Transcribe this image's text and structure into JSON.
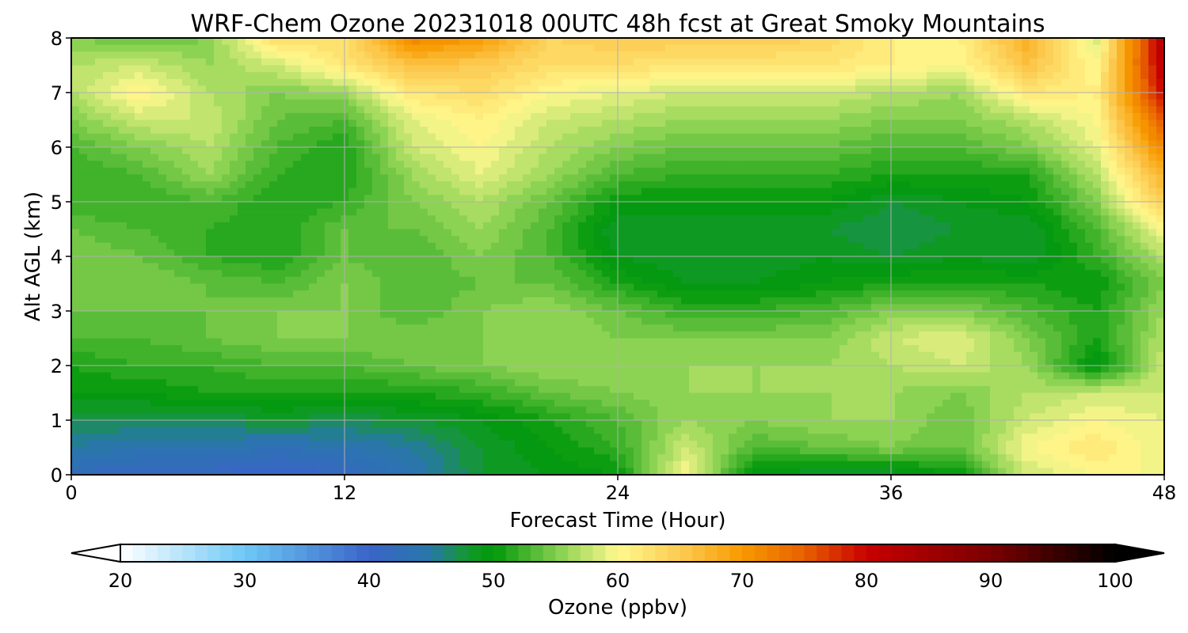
{
  "chart_data": {
    "type": "heatmap",
    "title": "WRF-Chem Ozone  20231018 00UTC 48h fcst at Great Smoky Mountains",
    "xlabel": "Forecast Time (Hour)",
    "ylabel": "Alt AGL (km)",
    "xlim": [
      0,
      48
    ],
    "ylim": [
      0,
      8
    ],
    "xticks": [
      0,
      12,
      24,
      36,
      48
    ],
    "yticks": [
      0,
      1,
      2,
      3,
      4,
      5,
      6,
      7,
      8
    ],
    "grid": true,
    "x_hours": [
      0,
      3,
      6,
      9,
      12,
      15,
      18,
      21,
      24,
      27,
      30,
      33,
      36,
      39,
      42,
      45,
      48
    ],
    "z_km": [
      0,
      0.5,
      1,
      1.5,
      2,
      2.5,
      3,
      3.5,
      4,
      4.5,
      5,
      5.5,
      6,
      6.5,
      7,
      7.5,
      8
    ],
    "values_ppbv": [
      [
        42,
        41,
        41,
        40,
        41,
        44,
        48,
        49,
        50,
        60,
        49,
        48,
        48,
        50,
        58,
        60,
        60
      ],
      [
        45,
        44,
        44,
        43,
        44,
        45,
        48,
        50,
        52,
        58,
        53,
        54,
        55,
        54,
        60,
        62,
        59
      ],
      [
        47,
        47,
        47,
        48,
        47,
        48,
        49,
        51,
        53,
        56,
        55,
        56,
        56,
        54,
        58,
        60,
        59
      ],
      [
        50,
        50,
        51,
        51,
        51,
        51,
        52,
        54,
        55,
        56,
        56,
        56,
        56,
        55,
        57,
        58,
        58
      ],
      [
        51,
        52,
        52,
        53,
        53,
        54,
        55,
        56,
        56,
        56,
        56,
        56,
        57,
        58,
        56,
        49,
        58
      ],
      [
        53,
        53,
        54,
        55,
        55,
        55,
        55,
        56,
        55,
        55,
        55,
        55,
        58,
        59,
        55,
        51,
        57
      ],
      [
        54,
        54,
        54,
        55,
        55,
        53,
        55,
        56,
        54,
        52,
        52,
        53,
        55,
        55,
        53,
        51,
        56
      ],
      [
        55,
        55,
        54,
        53,
        55,
        53,
        54,
        54,
        51,
        49,
        49,
        50,
        51,
        51,
        51,
        50,
        55
      ],
      [
        55,
        54,
        52,
        51,
        54,
        53,
        55,
        53,
        49,
        48,
        48,
        49,
        48,
        49,
        48,
        52,
        57
      ],
      [
        54,
        53,
        52,
        51,
        54,
        54,
        56,
        53,
        48,
        48,
        48,
        48,
        47,
        48,
        48,
        53,
        60
      ],
      [
        52,
        52,
        53,
        51,
        52,
        55,
        57,
        54,
        50,
        50,
        50,
        50,
        48,
        49,
        50,
        55,
        65
      ],
      [
        52,
        53,
        56,
        52,
        51,
        56,
        59,
        56,
        53,
        52,
        52,
        52,
        51,
        51,
        51,
        57,
        68
      ],
      [
        53,
        55,
        57,
        53,
        51,
        58,
        60,
        57,
        55,
        54,
        54,
        54,
        53,
        53,
        55,
        59,
        72
      ],
      [
        55,
        58,
        58,
        54,
        53,
        59,
        61,
        58,
        57,
        56,
        56,
        56,
        55,
        55,
        57,
        60,
        76
      ],
      [
        57,
        61,
        57,
        55,
        56,
        62,
        63,
        60,
        59,
        58,
        58,
        58,
        57,
        56,
        62,
        61,
        80
      ],
      [
        57,
        58,
        56,
        58,
        62,
        66,
        65,
        63,
        63,
        62,
        62,
        62,
        61,
        60,
        66,
        60,
        82
      ],
      [
        55,
        54,
        55,
        63,
        63,
        72,
        70,
        64,
        65,
        65,
        65,
        64,
        61,
        61,
        68,
        58,
        83
      ]
    ],
    "colorbar": {
      "label": "Ozone  (ppbv)",
      "min": 20,
      "max": 100,
      "step": 1,
      "extend": "both",
      "ticks": [
        20,
        30,
        40,
        50,
        60,
        70,
        80,
        90,
        100
      ],
      "colormap_stops": [
        {
          "v": 20,
          "color": "#ffffff"
        },
        {
          "v": 30,
          "color": "#6ec8f5"
        },
        {
          "v": 40,
          "color": "#3a64c8"
        },
        {
          "v": 45,
          "color": "#2878a8"
        },
        {
          "v": 48,
          "color": "#129a2a"
        },
        {
          "v": 50,
          "color": "#00980a"
        },
        {
          "v": 56,
          "color": "#9ad85a"
        },
        {
          "v": 60,
          "color": "#fff88e"
        },
        {
          "v": 65,
          "color": "#fccc52"
        },
        {
          "v": 70,
          "color": "#f79a00"
        },
        {
          "v": 75,
          "color": "#e86000"
        },
        {
          "v": 80,
          "color": "#c80000"
        },
        {
          "v": 90,
          "color": "#7a0000"
        },
        {
          "v": 100,
          "color": "#000000"
        }
      ]
    }
  }
}
